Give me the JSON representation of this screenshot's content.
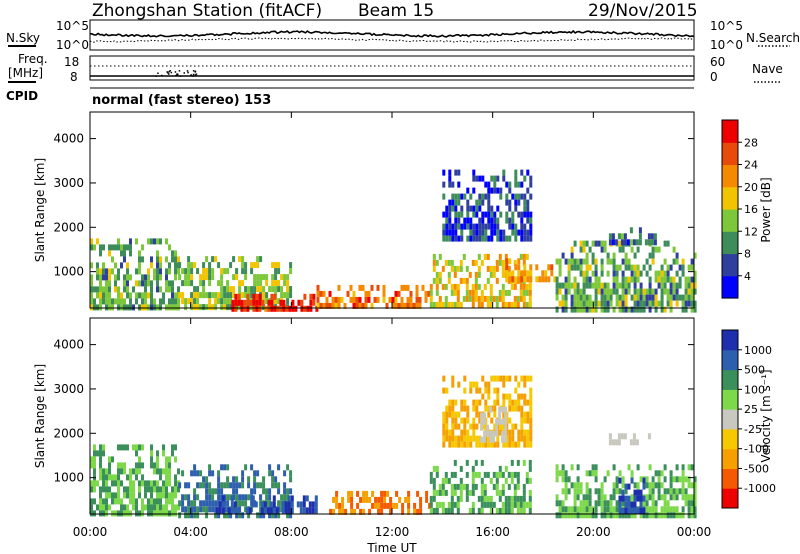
{
  "header": {
    "station": "Zhongshan Station (fitACF)",
    "beam": "Beam 15",
    "date": "29/Nov/2015"
  },
  "status_panels": {
    "noise_left": "N.Sky",
    "noise_right": "N.Search",
    "noise_ticks_left": [
      "10^5",
      "10^0"
    ],
    "noise_ticks_right": [
      "10^5",
      "10^0"
    ],
    "freq_label_top": "Freq.",
    "freq_label_unit": "[MHz]",
    "freq_ticks": [
      "18",
      "8"
    ],
    "nave_label": "Nave",
    "nave_ticks": [
      "60",
      "0"
    ],
    "cpid_label": "CPID",
    "cpid_text": "normal (fast stereo) 153"
  },
  "colors": {
    "power_scale": [
      "#0000ff",
      "#2e3f9e",
      "#3d8c5a",
      "#7dc83a",
      "#f2c400",
      "#f58a00",
      "#e84a0a",
      "#ee0000"
    ],
    "velocity_scale": [
      "#ee0000",
      "#f55a00",
      "#f5a000",
      "#f5c800",
      "#c8c8c0",
      "#7dd84a",
      "#3a8f5a",
      "#2e5fae",
      "#1e2fae"
    ]
  },
  "chart_data": [
    {
      "type": "heatmap",
      "name": "power",
      "xlabel": "Time UT",
      "ylabel": "Slant Range [km]",
      "x_ticks": [
        "00:00",
        "04:00",
        "08:00",
        "12:00",
        "16:00",
        "20:00",
        "00:00"
      ],
      "y_ticks": [
        1000,
        2000,
        3000,
        4000
      ],
      "xlim_hours": [
        0,
        24
      ],
      "ylim_km": [
        180,
        4600
      ],
      "colorbar_label": "Power [dB]",
      "colorbar_ticks": [
        "4",
        "8",
        "12",
        "16",
        "20",
        "24",
        "28"
      ],
      "colorbar_range": [
        0,
        32
      ],
      "echo_regions": [
        {
          "t0": 0.0,
          "t1": 3.5,
          "r0": 200,
          "r1": 1750,
          "level": 12
        },
        {
          "t0": 3.5,
          "t1": 8.0,
          "r0": 200,
          "r1": 1350,
          "level": 14
        },
        {
          "t0": 5.5,
          "t1": 9.0,
          "r0": 200,
          "r1": 500,
          "level": 28
        },
        {
          "t0": 9.0,
          "t1": 13.5,
          "r0": 200,
          "r1": 700,
          "level": 24
        },
        {
          "t0": 13.5,
          "t1": 17.5,
          "r0": 200,
          "r1": 1400,
          "level": 18
        },
        {
          "t0": 14.0,
          "t1": 17.5,
          "r0": 1800,
          "r1": 3300,
          "level": 6
        },
        {
          "t0": 16.5,
          "t1": 18.5,
          "r0": 800,
          "r1": 1300,
          "level": 22
        },
        {
          "t0": 18.5,
          "t1": 24.0,
          "r0": 200,
          "r1": 1700,
          "level": 12
        },
        {
          "t0": 20.5,
          "t1": 22.5,
          "r0": 1700,
          "r1": 2000,
          "level": 8
        }
      ]
    },
    {
      "type": "heatmap",
      "name": "velocity",
      "xlabel": "Time UT",
      "ylabel": "Slant Range [km]",
      "x_ticks": [
        "00:00",
        "04:00",
        "08:00",
        "12:00",
        "16:00",
        "20:00",
        "00:00"
      ],
      "y_ticks": [
        1000,
        2000,
        3000,
        4000
      ],
      "xlim_hours": [
        0,
        24
      ],
      "ylim_km": [
        180,
        4600
      ],
      "colorbar_label": "Velocity [m s⁻¹]",
      "colorbar_ticks": [
        "-1000",
        "-500",
        "-100",
        "-25",
        "25",
        "100",
        "500",
        "1000"
      ],
      "echo_regions": [
        {
          "t0": 0.0,
          "t1": 3.5,
          "r0": 200,
          "r1": 1750,
          "level": 100
        },
        {
          "t0": 3.5,
          "t1": 8.0,
          "r0": 200,
          "r1": 1300,
          "level": 500
        },
        {
          "t0": 5.0,
          "t1": 9.0,
          "r0": 200,
          "r1": 600,
          "level": 1000
        },
        {
          "t0": 9.5,
          "t1": 13.5,
          "r0": 200,
          "r1": 700,
          "level": -500
        },
        {
          "t0": 13.5,
          "t1": 17.5,
          "r0": 200,
          "r1": 1400,
          "level": 100
        },
        {
          "t0": 14.0,
          "t1": 17.5,
          "r0": 1800,
          "r1": 3300,
          "level": -100
        },
        {
          "t0": 15.5,
          "t1": 16.5,
          "r0": 1900,
          "r1": 2600,
          "level": 0
        },
        {
          "t0": 18.5,
          "t1": 24.0,
          "r0": 200,
          "r1": 1300,
          "level": 100
        },
        {
          "t0": 20.5,
          "t1": 22.5,
          "r0": 1800,
          "r1": 2000,
          "level": 0
        },
        {
          "t0": 21.0,
          "t1": 22.0,
          "r0": 300,
          "r1": 1000,
          "level": 1000
        }
      ]
    }
  ]
}
